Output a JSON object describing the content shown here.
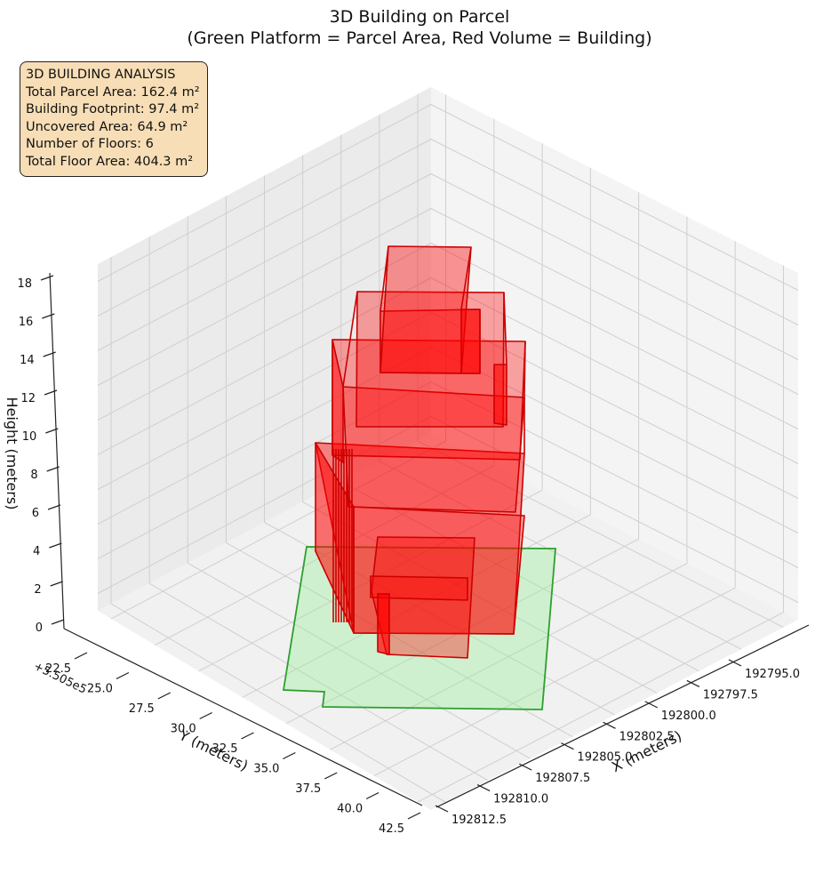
{
  "chart_data": {
    "type": "3d-bar",
    "title": "3D Building on Parcel",
    "subtitle": "(Green Platform = Parcel Area, Red Volume = Building)",
    "xlabel": "X (meters)",
    "ylabel": "Y (meters)",
    "zlabel": "Height (meters)",
    "x_ticks": [
      "192795.0",
      "192797.5",
      "192800.0",
      "192802.5",
      "192805.0",
      "192807.5",
      "192810.0",
      "192812.5"
    ],
    "y_ticks": [
      "22.5",
      "25.0",
      "27.5",
      "30.0",
      "32.5",
      "35.0",
      "37.5",
      "40.0",
      "42.5"
    ],
    "y_offset": "+5.505e5",
    "z_ticks": [
      "0",
      "2",
      "4",
      "6",
      "8",
      "10",
      "12",
      "14",
      "16",
      "18"
    ],
    "zlim": [
      0,
      18
    ],
    "grid": true,
    "series": [
      {
        "name": "Parcel Area",
        "color": "#90ee90"
      },
      {
        "name": "Building",
        "color": "#ff0000"
      }
    ],
    "stats": {
      "header": "3D BUILDING ANALYSIS",
      "parcel_area": "Total Parcel Area: 162.4 m²",
      "footprint": "Building Footprint: 97.4 m²",
      "uncovered": "Uncovered Area: 64.9 m²",
      "floors": "Number of Floors: 6",
      "floor_area": "Total Floor Area: 404.3 m²"
    }
  }
}
